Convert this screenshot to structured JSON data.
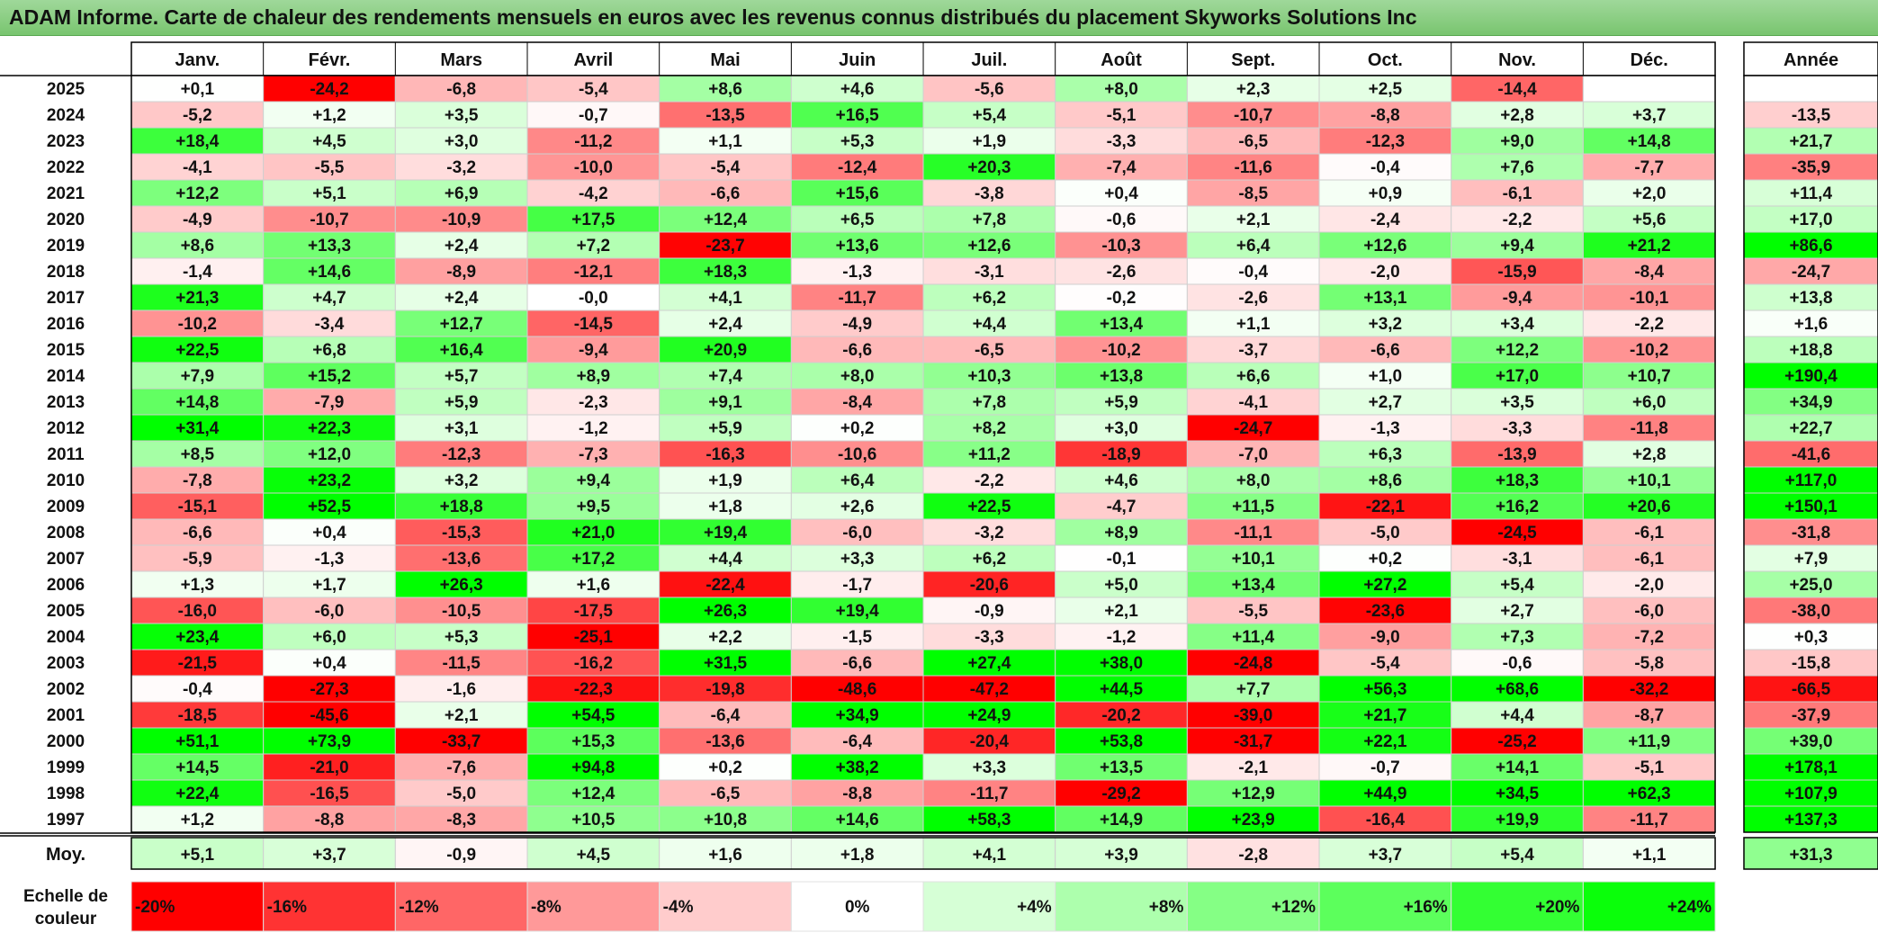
{
  "chart_data": {
    "type": "heatmap",
    "title": "ADAM Informe. Carte de chaleur des rendements mensuels en euros avec les revenus connus distribués du placement Skyworks Solutions Inc",
    "months": [
      "Janv.",
      "Févr.",
      "Mars",
      "Avril",
      "Mai",
      "Juin",
      "Juil.",
      "Août",
      "Sept.",
      "Oct.",
      "Nov.",
      "Déc."
    ],
    "year_header": "Année",
    "rows": [
      {
        "year": "2025",
        "values": [
          "+0,1",
          "-24,2",
          "-6,8",
          "-5,4",
          "+8,6",
          "+4,6",
          "-5,6",
          "+8,0",
          "+2,3",
          "+2,5",
          "-14,4",
          ""
        ],
        "annual": ""
      },
      {
        "year": "2024",
        "values": [
          "-5,2",
          "+1,2",
          "+3,5",
          "-0,7",
          "-13,5",
          "+16,5",
          "+5,4",
          "-5,1",
          "-10,7",
          "-8,8",
          "+2,8",
          "+3,7"
        ],
        "annual": "-13,5"
      },
      {
        "year": "2023",
        "values": [
          "+18,4",
          "+4,5",
          "+3,0",
          "-11,2",
          "+1,1",
          "+5,3",
          "+1,9",
          "-3,3",
          "-6,5",
          "-12,3",
          "+9,0",
          "+14,8"
        ],
        "annual": "+21,7"
      },
      {
        "year": "2022",
        "values": [
          "-4,1",
          "-5,5",
          "-3,2",
          "-10,0",
          "-5,4",
          "-12,4",
          "+20,3",
          "-7,4",
          "-11,6",
          "-0,4",
          "+7,6",
          "-7,7"
        ],
        "annual": "-35,9"
      },
      {
        "year": "2021",
        "values": [
          "+12,2",
          "+5,1",
          "+6,9",
          "-4,2",
          "-6,6",
          "+15,6",
          "-3,8",
          "+0,4",
          "-8,5",
          "+0,9",
          "-6,1",
          "+2,0"
        ],
        "annual": "+11,4"
      },
      {
        "year": "2020",
        "values": [
          "-4,9",
          "-10,7",
          "-10,9",
          "+17,5",
          "+12,4",
          "+6,5",
          "+7,8",
          "-0,6",
          "+2,1",
          "-2,4",
          "-2,2",
          "+5,6"
        ],
        "annual": "+17,0"
      },
      {
        "year": "2019",
        "values": [
          "+8,6",
          "+13,3",
          "+2,4",
          "+7,2",
          "-23,7",
          "+13,6",
          "+12,6",
          "-10,3",
          "+6,4",
          "+12,6",
          "+9,4",
          "+21,2"
        ],
        "annual": "+86,6"
      },
      {
        "year": "2018",
        "values": [
          "-1,4",
          "+14,6",
          "-8,9",
          "-12,1",
          "+18,3",
          "-1,3",
          "-3,1",
          "-2,6",
          "-0,4",
          "-2,0",
          "-15,9",
          "-8,4"
        ],
        "annual": "-24,7"
      },
      {
        "year": "2017",
        "values": [
          "+21,3",
          "+4,7",
          "+2,4",
          "-0,0",
          "+4,1",
          "-11,7",
          "+6,2",
          "-0,2",
          "-2,6",
          "+13,1",
          "-9,4",
          "-10,1"
        ],
        "annual": "+13,8"
      },
      {
        "year": "2016",
        "values": [
          "-10,2",
          "-3,4",
          "+12,7",
          "-14,5",
          "+2,4",
          "-4,9",
          "+4,4",
          "+13,4",
          "+1,1",
          "+3,2",
          "+3,4",
          "-2,2"
        ],
        "annual": "+1,6"
      },
      {
        "year": "2015",
        "values": [
          "+22,5",
          "+6,8",
          "+16,4",
          "-9,4",
          "+20,9",
          "-6,6",
          "-6,5",
          "-10,2",
          "-3,7",
          "-6,6",
          "+12,2",
          "-10,2"
        ],
        "annual": "+18,8"
      },
      {
        "year": "2014",
        "values": [
          "+7,9",
          "+15,2",
          "+5,7",
          "+8,9",
          "+7,4",
          "+8,0",
          "+10,3",
          "+13,8",
          "+6,6",
          "+1,0",
          "+17,0",
          "+10,7"
        ],
        "annual": "+190,4"
      },
      {
        "year": "2013",
        "values": [
          "+14,8",
          "-7,9",
          "+5,9",
          "-2,3",
          "+9,1",
          "-8,4",
          "+7,8",
          "+5,9",
          "-4,1",
          "+2,7",
          "+3,5",
          "+6,0"
        ],
        "annual": "+34,9"
      },
      {
        "year": "2012",
        "values": [
          "+31,4",
          "+22,3",
          "+3,1",
          "-1,2",
          "+5,9",
          "+0,2",
          "+8,2",
          "+3,0",
          "-24,7",
          "-1,3",
          "-3,3",
          "-11,8"
        ],
        "annual": "+22,7"
      },
      {
        "year": "2011",
        "values": [
          "+8,5",
          "+12,0",
          "-12,3",
          "-7,3",
          "-16,3",
          "-10,6",
          "+11,2",
          "-18,9",
          "-7,0",
          "+6,3",
          "-13,9",
          "+2,8"
        ],
        "annual": "-41,6"
      },
      {
        "year": "2010",
        "values": [
          "-7,8",
          "+23,2",
          "+3,2",
          "+9,4",
          "+1,9",
          "+6,4",
          "-2,2",
          "+4,6",
          "+8,0",
          "+8,6",
          "+18,3",
          "+10,1"
        ],
        "annual": "+117,0"
      },
      {
        "year": "2009",
        "values": [
          "-15,1",
          "+52,5",
          "+18,8",
          "+9,5",
          "+1,8",
          "+2,6",
          "+22,5",
          "-4,7",
          "+11,5",
          "-22,1",
          "+16,2",
          "+20,6"
        ],
        "annual": "+150,1"
      },
      {
        "year": "2008",
        "values": [
          "-6,6",
          "+0,4",
          "-15,3",
          "+21,0",
          "+19,4",
          "-6,0",
          "-3,2",
          "+8,9",
          "-11,1",
          "-5,0",
          "-24,5",
          "-6,1"
        ],
        "annual": "-31,8"
      },
      {
        "year": "2007",
        "values": [
          "-5,9",
          "-1,3",
          "-13,6",
          "+17,2",
          "+4,4",
          "+3,3",
          "+6,2",
          "-0,1",
          "+10,1",
          "+0,2",
          "-3,1",
          "-6,1"
        ],
        "annual": "+7,9"
      },
      {
        "year": "2006",
        "values": [
          "+1,3",
          "+1,7",
          "+26,3",
          "+1,6",
          "-22,4",
          "-1,7",
          "-20,6",
          "+5,0",
          "+13,4",
          "+27,2",
          "+5,4",
          "-2,0"
        ],
        "annual": "+25,0"
      },
      {
        "year": "2005",
        "values": [
          "-16,0",
          "-6,0",
          "-10,5",
          "-17,5",
          "+26,3",
          "+19,4",
          "-0,9",
          "+2,1",
          "-5,5",
          "-23,6",
          "+2,7",
          "-6,0"
        ],
        "annual": "-38,0"
      },
      {
        "year": "2004",
        "values": [
          "+23,4",
          "+6,0",
          "+5,3",
          "-25,1",
          "+2,2",
          "-1,5",
          "-3,3",
          "-1,2",
          "+11,4",
          "-9,0",
          "+7,3",
          "-7,2"
        ],
        "annual": "+0,3"
      },
      {
        "year": "2003",
        "values": [
          "-21,5",
          "+0,4",
          "-11,5",
          "-16,2",
          "+31,5",
          "-6,6",
          "+27,4",
          "+38,0",
          "-24,8",
          "-5,4",
          "-0,6",
          "-5,8"
        ],
        "annual": "-15,8"
      },
      {
        "year": "2002",
        "values": [
          "-0,4",
          "-27,3",
          "-1,6",
          "-22,3",
          "-19,8",
          "-48,6",
          "-47,2",
          "+44,5",
          "+7,7",
          "+56,3",
          "+68,6",
          "-32,2"
        ],
        "annual": "-66,5"
      },
      {
        "year": "2001",
        "values": [
          "-18,5",
          "-45,6",
          "+2,1",
          "+54,5",
          "-6,4",
          "+34,9",
          "+24,9",
          "-20,2",
          "-39,0",
          "+21,7",
          "+4,4",
          "-8,7"
        ],
        "annual": "-37,9"
      },
      {
        "year": "2000",
        "values": [
          "+51,1",
          "+73,9",
          "-33,7",
          "+15,3",
          "-13,6",
          "-6,4",
          "-20,4",
          "+53,8",
          "-31,7",
          "+22,1",
          "-25,2",
          "+11,9"
        ],
        "annual": "+39,0"
      },
      {
        "year": "1999",
        "values": [
          "+14,5",
          "-21,0",
          "-7,6",
          "+94,8",
          "+0,2",
          "+38,2",
          "+3,3",
          "+13,5",
          "-2,1",
          "-0,7",
          "+14,1",
          "-5,1"
        ],
        "annual": "+178,1"
      },
      {
        "year": "1998",
        "values": [
          "+22,4",
          "-16,5",
          "-5,0",
          "+12,4",
          "-6,5",
          "-8,8",
          "-11,7",
          "-29,2",
          "+12,9",
          "+44,9",
          "+34,5",
          "+62,3"
        ],
        "annual": "+107,9"
      },
      {
        "year": "1997",
        "values": [
          "+1,2",
          "-8,8",
          "-8,3",
          "+10,5",
          "+10,8",
          "+14,6",
          "+58,3",
          "+14,9",
          "+23,9",
          "-16,4",
          "+19,9",
          "-11,7"
        ],
        "annual": "+137,3"
      }
    ],
    "average": {
      "label": "Moy.",
      "values": [
        "+5,1",
        "+3,7",
        "-0,9",
        "+4,5",
        "+1,6",
        "+1,8",
        "+4,1",
        "+3,9",
        "-2,8",
        "+3,7",
        "+5,4",
        "+1,1"
      ],
      "annual": "+31,3"
    },
    "scale": {
      "label_line1": "Echelle de",
      "label_line2": "couleur",
      "steps": [
        {
          "label": "-20%",
          "value": -20,
          "color": "#ff0000"
        },
        {
          "label": "-16%",
          "value": -16,
          "color": "#ff3333"
        },
        {
          "label": "-12%",
          "value": -12,
          "color": "#ff6666"
        },
        {
          "label": "-8%",
          "value": -8,
          "color": "#ff9999"
        },
        {
          "label": "-4%",
          "value": -4,
          "color": "#ffcccc"
        },
        {
          "label": "0%",
          "value": 0,
          "color": "#ffffff"
        },
        {
          "label": "+4%",
          "value": 4,
          "color": "#d6ffd6"
        },
        {
          "label": "+8%",
          "value": 8,
          "color": "#adffad"
        },
        {
          "label": "+12%",
          "value": 12,
          "color": "#85ff85"
        },
        {
          "label": "+16%",
          "value": 16,
          "color": "#5cff5c"
        },
        {
          "label": "+20%",
          "value": 20,
          "color": "#33ff33"
        },
        {
          "label": "+24%",
          "value": 24,
          "color": "#0aff0a"
        }
      ]
    },
    "colors": {
      "negative_max": "#ff0000",
      "positive_max": "#00ff00",
      "neutral": "#ffffff",
      "title_bar": "#8dd183"
    }
  }
}
